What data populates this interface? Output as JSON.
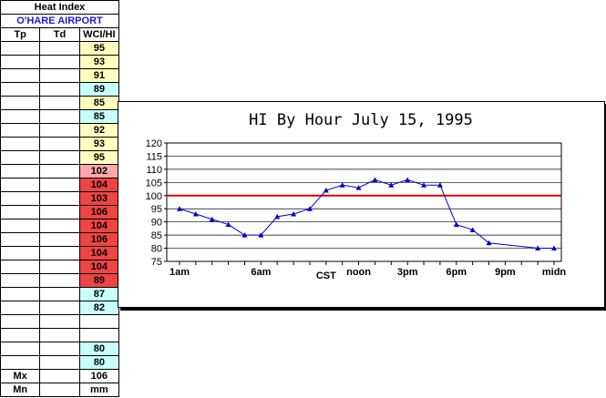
{
  "sheet": {
    "title": "Heat Index",
    "location": "O'HARE AIRPORT",
    "columns": [
      "Tp",
      "Td",
      "WCI/HI"
    ],
    "rows": [
      {
        "v": "95",
        "c": "yel"
      },
      {
        "v": "93",
        "c": "yel"
      },
      {
        "v": "91",
        "c": "yel"
      },
      {
        "v": "89",
        "c": "cyn"
      },
      {
        "v": "85",
        "c": "yel"
      },
      {
        "v": "85",
        "c": "cyn"
      },
      {
        "v": "92",
        "c": "yel"
      },
      {
        "v": "93",
        "c": "yel"
      },
      {
        "v": "95",
        "c": "yel"
      },
      {
        "v": "102",
        "c": "pnk"
      },
      {
        "v": "104",
        "c": "red"
      },
      {
        "v": "103",
        "c": "red"
      },
      {
        "v": "106",
        "c": "red"
      },
      {
        "v": "104",
        "c": "red"
      },
      {
        "v": "106",
        "c": "red"
      },
      {
        "v": "104",
        "c": "red"
      },
      {
        "v": "104",
        "c": "red"
      },
      {
        "v": "89",
        "c": "red"
      },
      {
        "v": "87",
        "c": "cyn"
      },
      {
        "v": "82",
        "c": "cyn"
      },
      {
        "v": "",
        "c": "wht"
      },
      {
        "v": "",
        "c": "wht"
      },
      {
        "v": "80",
        "c": "cyn"
      },
      {
        "v": "80",
        "c": "cyn"
      }
    ],
    "max_label": "Mx",
    "max_value": "106",
    "min_label": "Mn",
    "min_value": "mm"
  },
  "chart_data": {
    "type": "line",
    "title": "HI By Hour  July 15, 1995",
    "ylim": [
      75,
      120
    ],
    "yticks": [
      75,
      80,
      85,
      90,
      95,
      100,
      105,
      110,
      115,
      120
    ],
    "xlim": [
      1,
      24
    ],
    "x_tick_labels": [
      {
        "x": 1,
        "label": "1am"
      },
      {
        "x": 6,
        "label": "6am"
      },
      {
        "x": 10,
        "label": "CST"
      },
      {
        "x": 12,
        "label": "noon"
      },
      {
        "x": 15,
        "label": "3pm"
      },
      {
        "x": 18,
        "label": "6pm"
      },
      {
        "x": 21,
        "label": "9pm"
      },
      {
        "x": 24,
        "label": "midn"
      }
    ],
    "threshold": 100,
    "colors": {
      "series": "#0000cc",
      "threshold": "#dd0000"
    },
    "series": [
      {
        "points": [
          {
            "x": 1,
            "y": 95
          },
          {
            "x": 2,
            "y": 93
          },
          {
            "x": 3,
            "y": 91
          },
          {
            "x": 4,
            "y": 89
          },
          {
            "x": 5,
            "y": 85
          },
          {
            "x": 6,
            "y": 85
          },
          {
            "x": 7,
            "y": 92
          },
          {
            "x": 8,
            "y": 93
          },
          {
            "x": 9,
            "y": 95
          },
          {
            "x": 10,
            "y": 102
          },
          {
            "x": 11,
            "y": 104
          },
          {
            "x": 12,
            "y": 103
          },
          {
            "x": 13,
            "y": 106
          },
          {
            "x": 14,
            "y": 104
          },
          {
            "x": 15,
            "y": 106
          },
          {
            "x": 16,
            "y": 104
          },
          {
            "x": 17,
            "y": 104
          },
          {
            "x": 18,
            "y": 89
          },
          {
            "x": 19,
            "y": 87
          },
          {
            "x": 20,
            "y": 82
          },
          {
            "x": 23,
            "y": 80
          },
          {
            "x": 24,
            "y": 80
          }
        ]
      }
    ]
  }
}
